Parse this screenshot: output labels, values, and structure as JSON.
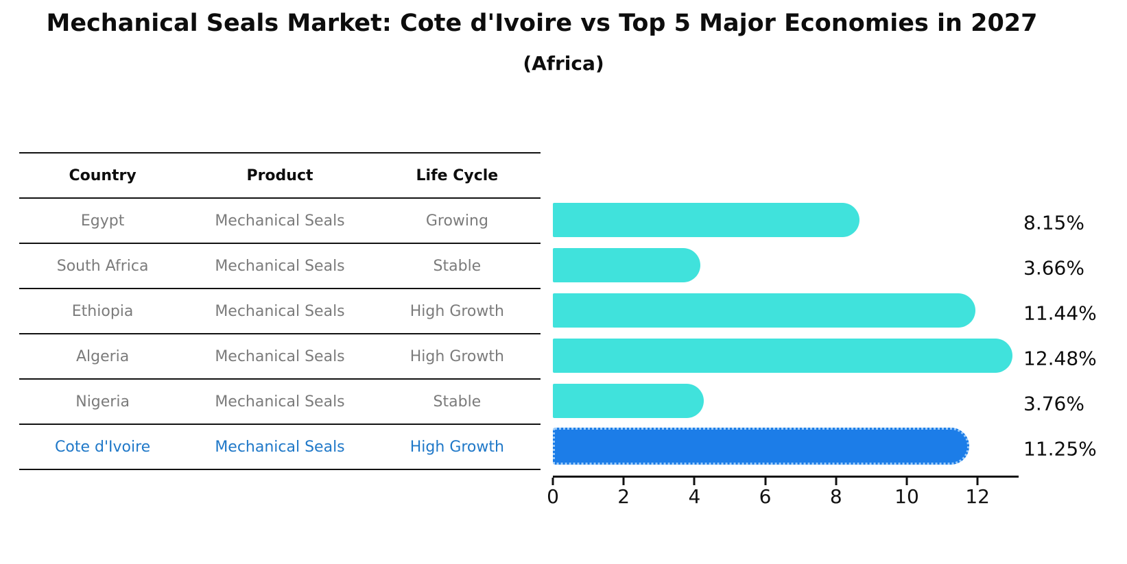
{
  "title": "Mechanical Seals Market: Cote d'Ivoire vs Top 5 Major Economies in 2027",
  "subtitle": "(Africa)",
  "table": {
    "headers": [
      "Country",
      "Product",
      "Life Cycle"
    ],
    "rows": [
      {
        "country": "Egypt",
        "product": "Mechanical Seals",
        "life_cycle": "Growing",
        "highlight": false
      },
      {
        "country": "South Africa",
        "product": "Mechanical Seals",
        "life_cycle": "Stable",
        "highlight": false
      },
      {
        "country": "Ethiopia",
        "product": "Mechanical Seals",
        "life_cycle": "High Growth",
        "highlight": false
      },
      {
        "country": "Algeria",
        "product": "Mechanical Seals",
        "life_cycle": "High Growth",
        "highlight": false
      },
      {
        "country": "Nigeria",
        "product": "Mechanical Seals",
        "life_cycle": "Stable",
        "highlight": false
      },
      {
        "country": "Cote d'Ivoire",
        "product": "Mechanical Seals",
        "life_cycle": "High Growth",
        "highlight": true
      }
    ]
  },
  "chart_data": {
    "type": "bar",
    "orientation": "horizontal",
    "title": "Mechanical Seals Market: Cote d'Ivoire vs Top 5 Major Economies in 2027",
    "subtitle": "(Africa)",
    "categories": [
      "Egypt",
      "South Africa",
      "Ethiopia",
      "Algeria",
      "Nigeria",
      "Cote d'Ivoire"
    ],
    "values": [
      8.15,
      3.66,
      11.44,
      12.48,
      3.76,
      11.25
    ],
    "value_labels": [
      "8.15%",
      "3.66%",
      "11.44%",
      "12.48%",
      "3.76%",
      "11.25%"
    ],
    "x_ticks": [
      0,
      2,
      4,
      6,
      8,
      10,
      12
    ],
    "xlim": [
      0,
      13.1
    ],
    "grid": false,
    "legend_position": "none",
    "highlight_index": 5
  },
  "colors": {
    "bar": "#40E2DC",
    "highlight_bar": "#1C7DE8",
    "highlight_bar_border": "#9CCBF9",
    "text": "#0d0d0d",
    "muted_text": "#7b7b7b",
    "highlight_text": "#1f78c8",
    "axis": "#111111"
  }
}
